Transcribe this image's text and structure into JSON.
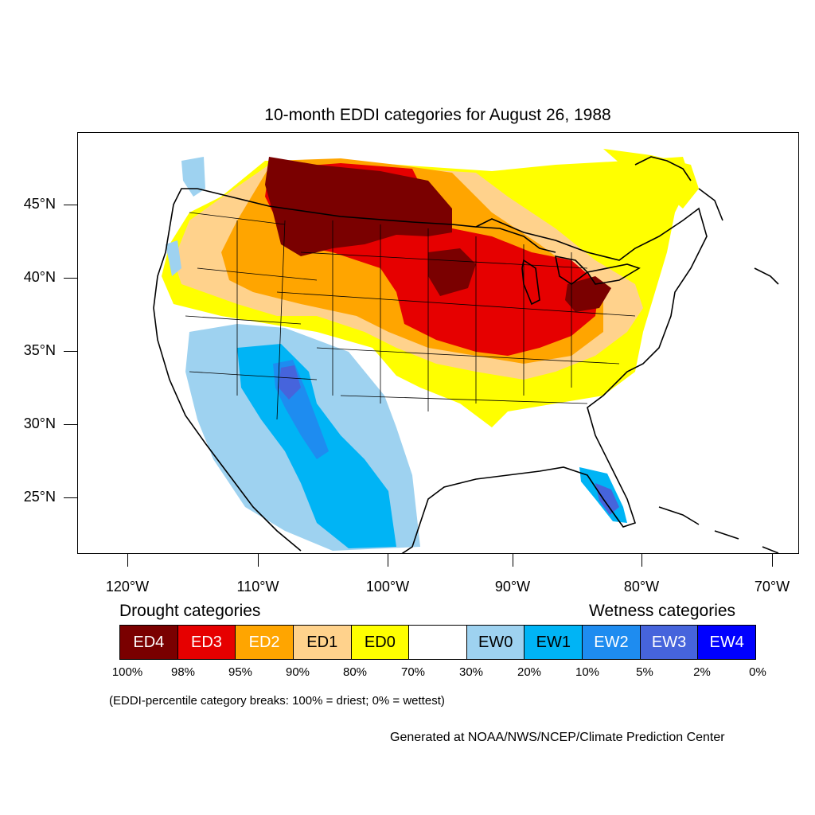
{
  "title": "10-month EDDI categories for August 26, 1988",
  "axes": {
    "lat_labels": [
      "45°N",
      "40°N",
      "35°N",
      "30°N",
      "25°N"
    ],
    "lon_labels": [
      "120°W",
      "110°W",
      "100°W",
      "90°W",
      "80°W",
      "70°W"
    ]
  },
  "colors": {
    "ED4": "#7a0000",
    "ED3": "#e60000",
    "ED2": "#ffa500",
    "ED1": "#ffd28c",
    "ED0": "#ffff00",
    "neutral": "#ffffff",
    "EW0": "#9ed2f0",
    "EW1": "#00b4f5",
    "EW2": "#1e8cf0",
    "EW3": "#4664dc",
    "EW4": "#0000ff"
  },
  "legend": {
    "drought_heading": "Drought categories",
    "wetness_heading": "Wetness categories",
    "categories": [
      {
        "label": "ED4",
        "color": "#7a0000",
        "text_color": "#ffffff"
      },
      {
        "label": "ED3",
        "color": "#e60000",
        "text_color": "#ffffff"
      },
      {
        "label": "ED2",
        "color": "#ffa500",
        "text_color": "#ffffff"
      },
      {
        "label": "ED1",
        "color": "#ffd28c",
        "text_color": "#000000"
      },
      {
        "label": "ED0",
        "color": "#ffff00",
        "text_color": "#000000"
      },
      {
        "label": "",
        "color": "#ffffff",
        "text_color": "#000000"
      },
      {
        "label": "EW0",
        "color": "#9ed2f0",
        "text_color": "#000000"
      },
      {
        "label": "EW1",
        "color": "#00b4f5",
        "text_color": "#000000"
      },
      {
        "label": "EW2",
        "color": "#1e8cf0",
        "text_color": "#ffffff"
      },
      {
        "label": "EW3",
        "color": "#4664dc",
        "text_color": "#ffffff"
      },
      {
        "label": "EW4",
        "color": "#0000ff",
        "text_color": "#ffffff"
      }
    ],
    "percentiles": [
      "100%",
      "98%",
      "95%",
      "90%",
      "80%",
      "70%",
      "30%",
      "20%",
      "10%",
      "5%",
      "2%",
      "0%"
    ]
  },
  "note": "(EDDI-percentile category breaks: 100% = driest; 0% = wettest)",
  "credit": "Generated at NOAA/NWS/NCEP/Climate Prediction Center"
}
